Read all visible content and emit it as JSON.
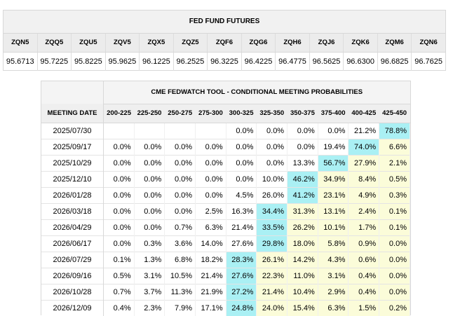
{
  "futures": {
    "title": "FED FUND FUTURES",
    "contracts": [
      "ZQN5",
      "ZQQ5",
      "ZQU5",
      "ZQV5",
      "ZQX5",
      "ZQZ5",
      "ZQF6",
      "ZQG6",
      "ZQH6",
      "ZQJ6",
      "ZQK6",
      "ZQM6",
      "ZQN6"
    ],
    "prices": [
      "95.6713",
      "95.7225",
      "95.8225",
      "95.9625",
      "96.1225",
      "96.2525",
      "96.3225",
      "96.4225",
      "96.4775",
      "96.5625",
      "96.6300",
      "96.6825",
      "96.7625"
    ]
  },
  "fedwatch": {
    "title": "CME FEDWATCH TOOL - CONDITIONAL MEETING PROBABILITIES",
    "date_header": "MEETING DATE",
    "ranges": [
      "200-225",
      "225-250",
      "250-275",
      "275-300",
      "300-325",
      "325-350",
      "350-375",
      "375-400",
      "400-425",
      "425-450"
    ],
    "colors": {
      "max_highlight": "#aaf0f4",
      "above_max": "#fbfcd9"
    },
    "rows": [
      {
        "date": "2025/07/30",
        "values": [
          "",
          "",
          "",
          "",
          "0.0%",
          "0.0%",
          "0.0%",
          "0.0%",
          "21.2%",
          "78.8%"
        ],
        "max": 9
      },
      {
        "date": "2025/09/17",
        "values": [
          "0.0%",
          "0.0%",
          "0.0%",
          "0.0%",
          "0.0%",
          "0.0%",
          "0.0%",
          "19.4%",
          "74.0%",
          "6.6%"
        ],
        "max": 8
      },
      {
        "date": "2025/10/29",
        "values": [
          "0.0%",
          "0.0%",
          "0.0%",
          "0.0%",
          "0.0%",
          "0.0%",
          "13.3%",
          "56.7%",
          "27.9%",
          "2.1%"
        ],
        "max": 7
      },
      {
        "date": "2025/12/10",
        "values": [
          "0.0%",
          "0.0%",
          "0.0%",
          "0.0%",
          "0.0%",
          "10.0%",
          "46.2%",
          "34.9%",
          "8.4%",
          "0.5%"
        ],
        "max": 6
      },
      {
        "date": "2026/01/28",
        "values": [
          "0.0%",
          "0.0%",
          "0.0%",
          "0.0%",
          "4.5%",
          "26.0%",
          "41.2%",
          "23.1%",
          "4.9%",
          "0.3%"
        ],
        "max": 6
      },
      {
        "date": "2026/03/18",
        "values": [
          "0.0%",
          "0.0%",
          "0.0%",
          "2.5%",
          "16.3%",
          "34.4%",
          "31.3%",
          "13.1%",
          "2.4%",
          "0.1%"
        ],
        "max": 5
      },
      {
        "date": "2026/04/29",
        "values": [
          "0.0%",
          "0.0%",
          "0.7%",
          "6.3%",
          "21.4%",
          "33.5%",
          "26.2%",
          "10.1%",
          "1.7%",
          "0.1%"
        ],
        "max": 5
      },
      {
        "date": "2026/06/17",
        "values": [
          "0.0%",
          "0.3%",
          "3.6%",
          "14.0%",
          "27.6%",
          "29.8%",
          "18.0%",
          "5.8%",
          "0.9%",
          "0.0%"
        ],
        "max": 5
      },
      {
        "date": "2026/07/29",
        "values": [
          "0.1%",
          "1.3%",
          "6.8%",
          "18.2%",
          "28.3%",
          "26.1%",
          "14.2%",
          "4.3%",
          "0.6%",
          "0.0%"
        ],
        "max": 4
      },
      {
        "date": "2026/09/16",
        "values": [
          "0.5%",
          "3.1%",
          "10.5%",
          "21.4%",
          "27.6%",
          "22.3%",
          "11.0%",
          "3.1%",
          "0.4%",
          "0.0%"
        ],
        "max": 4
      },
      {
        "date": "2026/10/28",
        "values": [
          "0.7%",
          "3.7%",
          "11.3%",
          "21.9%",
          "27.2%",
          "21.4%",
          "10.4%",
          "2.9%",
          "0.4%",
          "0.0%"
        ],
        "max": 4
      },
      {
        "date": "2026/12/09",
        "values": [
          "0.4%",
          "2.3%",
          "7.9%",
          "17.1%",
          "24.8%",
          "24.0%",
          "15.4%",
          "6.3%",
          "1.5%",
          "0.2%"
        ],
        "max": 4
      }
    ]
  }
}
